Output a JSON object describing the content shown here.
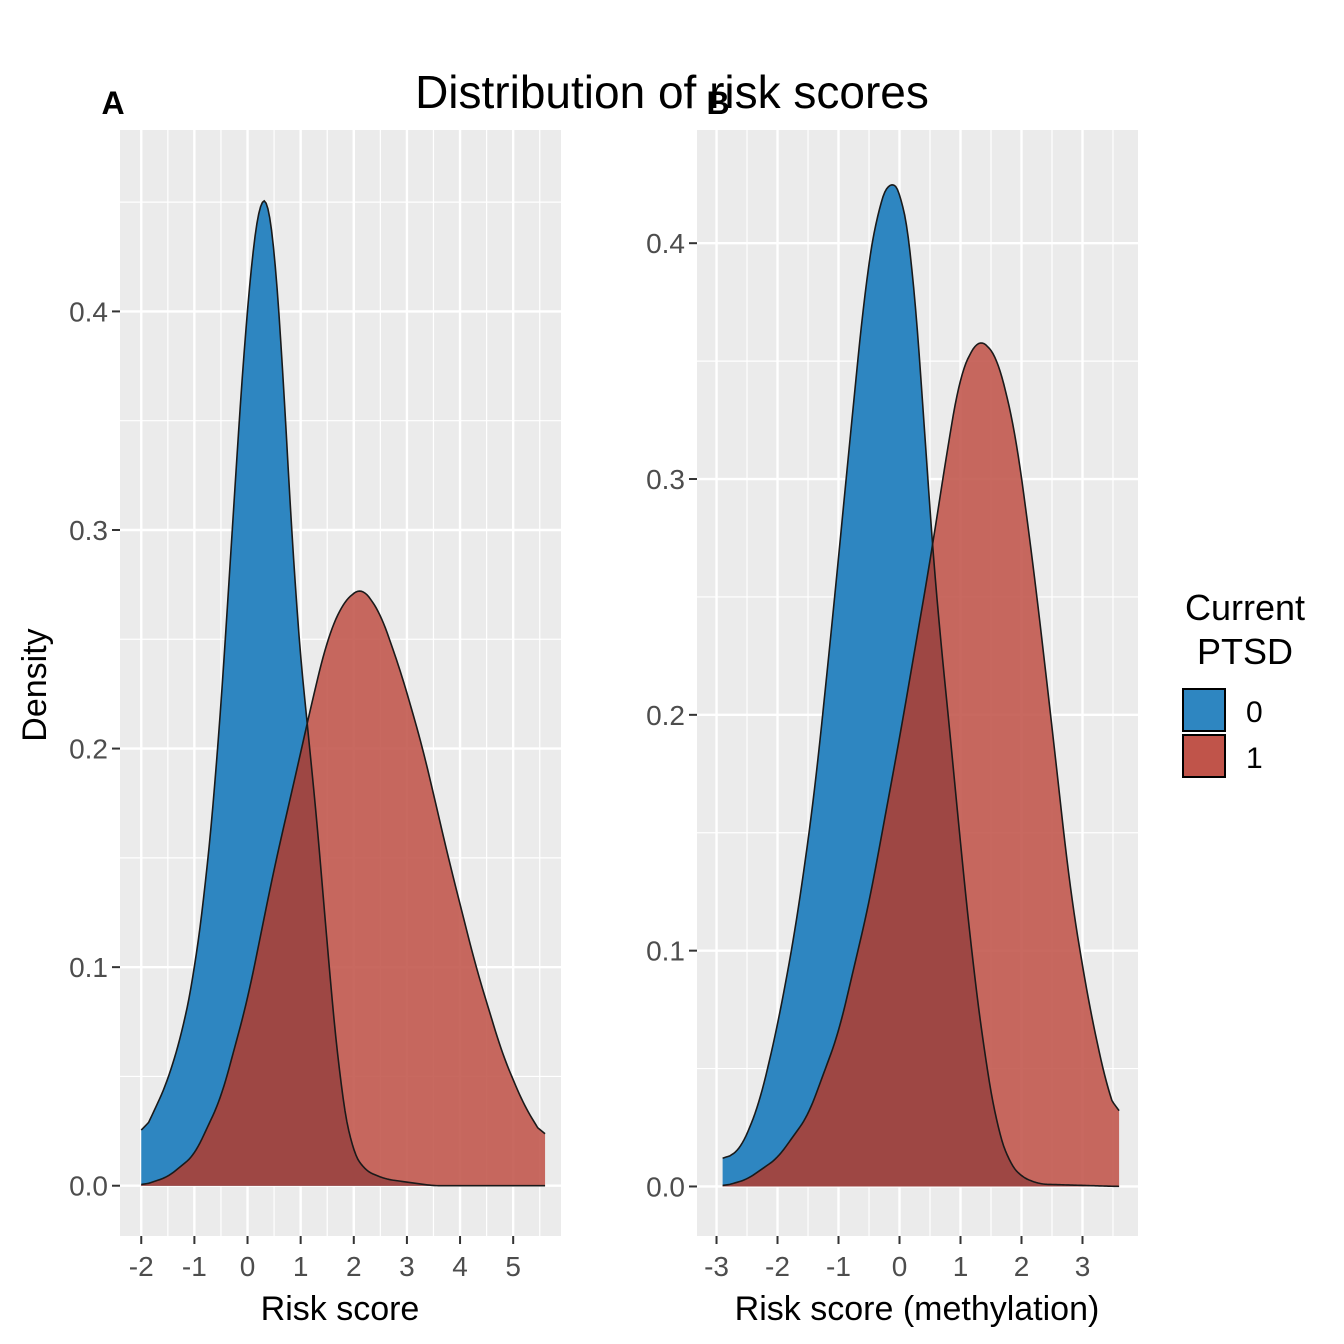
{
  "title": "Distribution of risk scores",
  "y_axis_title": "Density",
  "legend": {
    "title_lines": [
      "Current",
      "PTSD"
    ],
    "items": [
      {
        "label": "0",
        "color": "#2e86c1"
      },
      {
        "label": "1",
        "color": "#c0544a"
      }
    ]
  },
  "colors": {
    "panel_bg": "#ebebeb",
    "grid": "#ffffff",
    "outline": "#1a1a1a",
    "group0": "#2e86c1",
    "group1": "#c0544a",
    "overlap": "#9e4744"
  },
  "chart_data": [
    {
      "type": "area",
      "subtype": "density",
      "tag": "A",
      "xlabel": "Risk score",
      "ylabel": "Density",
      "xlim": [
        -2.4,
        5.9
      ],
      "ylim": [
        -0.023,
        0.483
      ],
      "x_ticks": [
        -2,
        -1,
        0,
        1,
        2,
        3,
        4,
        5
      ],
      "x_tick_labels": [
        "-2",
        "-1",
        "0",
        "1",
        "2",
        "3",
        "4",
        "5"
      ],
      "y_ticks": [
        0.0,
        0.1,
        0.2,
        0.3,
        0.4
      ],
      "y_tick_labels": [
        "0.0",
        "0.1",
        "0.2",
        "0.3",
        "0.4"
      ],
      "grid": true,
      "series": [
        {
          "name": "0",
          "x_range": [
            -2.0,
            5.6
          ],
          "points": [
            [
              -2.0,
              0.022
            ],
            [
              -1.8,
              0.032
            ],
            [
              -1.5,
              0.048
            ],
            [
              -1.2,
              0.073
            ],
            [
              -1.0,
              0.098
            ],
            [
              -0.8,
              0.135
            ],
            [
              -0.6,
              0.185
            ],
            [
              -0.4,
              0.255
            ],
            [
              -0.2,
              0.335
            ],
            [
              0.0,
              0.405
            ],
            [
              0.15,
              0.44
            ],
            [
              0.3,
              0.459
            ],
            [
              0.45,
              0.445
            ],
            [
              0.6,
              0.402
            ],
            [
              0.75,
              0.335
            ],
            [
              0.9,
              0.268
            ],
            [
              1.1,
              0.215
            ],
            [
              1.2,
              0.195
            ],
            [
              1.35,
              0.155
            ],
            [
              1.55,
              0.095
            ],
            [
              1.75,
              0.045
            ],
            [
              1.95,
              0.017
            ],
            [
              2.2,
              0.007
            ],
            [
              2.6,
              0.003
            ],
            [
              3.5,
              0.0
            ],
            [
              5.6,
              0.0
            ]
          ]
        },
        {
          "name": "1",
          "x_range": [
            -2.0,
            5.6
          ],
          "points": [
            [
              -2.0,
              0.0
            ],
            [
              -1.5,
              0.004
            ],
            [
              -1.0,
              0.014
            ],
            [
              -0.5,
              0.04
            ],
            [
              0.0,
              0.085
            ],
            [
              0.5,
              0.145
            ],
            [
              1.0,
              0.198
            ],
            [
              1.2,
              0.22
            ],
            [
              1.5,
              0.25
            ],
            [
              1.8,
              0.267
            ],
            [
              2.15,
              0.274
            ],
            [
              2.5,
              0.262
            ],
            [
              2.9,
              0.234
            ],
            [
              3.3,
              0.2
            ],
            [
              3.8,
              0.148
            ],
            [
              4.3,
              0.1
            ],
            [
              4.8,
              0.06
            ],
            [
              5.2,
              0.037
            ],
            [
              5.6,
              0.021
            ]
          ]
        }
      ]
    },
    {
      "type": "area",
      "subtype": "density",
      "tag": "B",
      "xlabel": "Risk score (methylation)",
      "ylabel": "",
      "xlim": [
        -3.32,
        3.91
      ],
      "ylim": [
        -0.021,
        0.448
      ],
      "x_ticks": [
        -3,
        -2,
        -1,
        0,
        1,
        2,
        3
      ],
      "x_tick_labels": [
        "-3",
        "-2",
        "-1",
        "0",
        "1",
        "2",
        "3"
      ],
      "y_ticks": [
        0.0,
        0.1,
        0.2,
        0.3,
        0.4
      ],
      "y_tick_labels": [
        "0.0",
        "0.1",
        "0.2",
        "0.3",
        "0.4"
      ],
      "grid": true,
      "series": [
        {
          "name": "0",
          "x_range": [
            -2.9,
            3.6
          ],
          "points": [
            [
              -2.9,
              0.011
            ],
            [
              -2.6,
              0.016
            ],
            [
              -2.3,
              0.035
            ],
            [
              -2.0,
              0.068
            ],
            [
              -1.7,
              0.11
            ],
            [
              -1.4,
              0.165
            ],
            [
              -1.1,
              0.24
            ],
            [
              -0.8,
              0.32
            ],
            [
              -0.55,
              0.385
            ],
            [
              -0.35,
              0.415
            ],
            [
              -0.15,
              0.428
            ],
            [
              0.05,
              0.42
            ],
            [
              0.2,
              0.395
            ],
            [
              0.35,
              0.345
            ],
            [
              0.5,
              0.285
            ],
            [
              0.62,
              0.245
            ],
            [
              0.8,
              0.2
            ],
            [
              1.0,
              0.145
            ],
            [
              1.2,
              0.095
            ],
            [
              1.4,
              0.055
            ],
            [
              1.6,
              0.025
            ],
            [
              1.8,
              0.01
            ],
            [
              2.0,
              0.004
            ],
            [
              2.3,
              0.001
            ],
            [
              3.6,
              0.0
            ]
          ]
        },
        {
          "name": "1",
          "x_range": [
            -2.9,
            3.6
          ],
          "points": [
            [
              -2.9,
              0.0
            ],
            [
              -2.5,
              0.003
            ],
            [
              -2.0,
              0.012
            ],
            [
              -1.5,
              0.03
            ],
            [
              -1.0,
              0.065
            ],
            [
              -0.5,
              0.12
            ],
            [
              0.0,
              0.19
            ],
            [
              0.5,
              0.265
            ],
            [
              0.8,
              0.315
            ],
            [
              1.0,
              0.345
            ],
            [
              1.3,
              0.36
            ],
            [
              1.6,
              0.352
            ],
            [
              1.9,
              0.32
            ],
            [
              2.2,
              0.262
            ],
            [
              2.5,
              0.195
            ],
            [
              2.8,
              0.125
            ],
            [
              3.1,
              0.078
            ],
            [
              3.4,
              0.042
            ],
            [
              3.6,
              0.028
            ]
          ]
        }
      ]
    }
  ]
}
